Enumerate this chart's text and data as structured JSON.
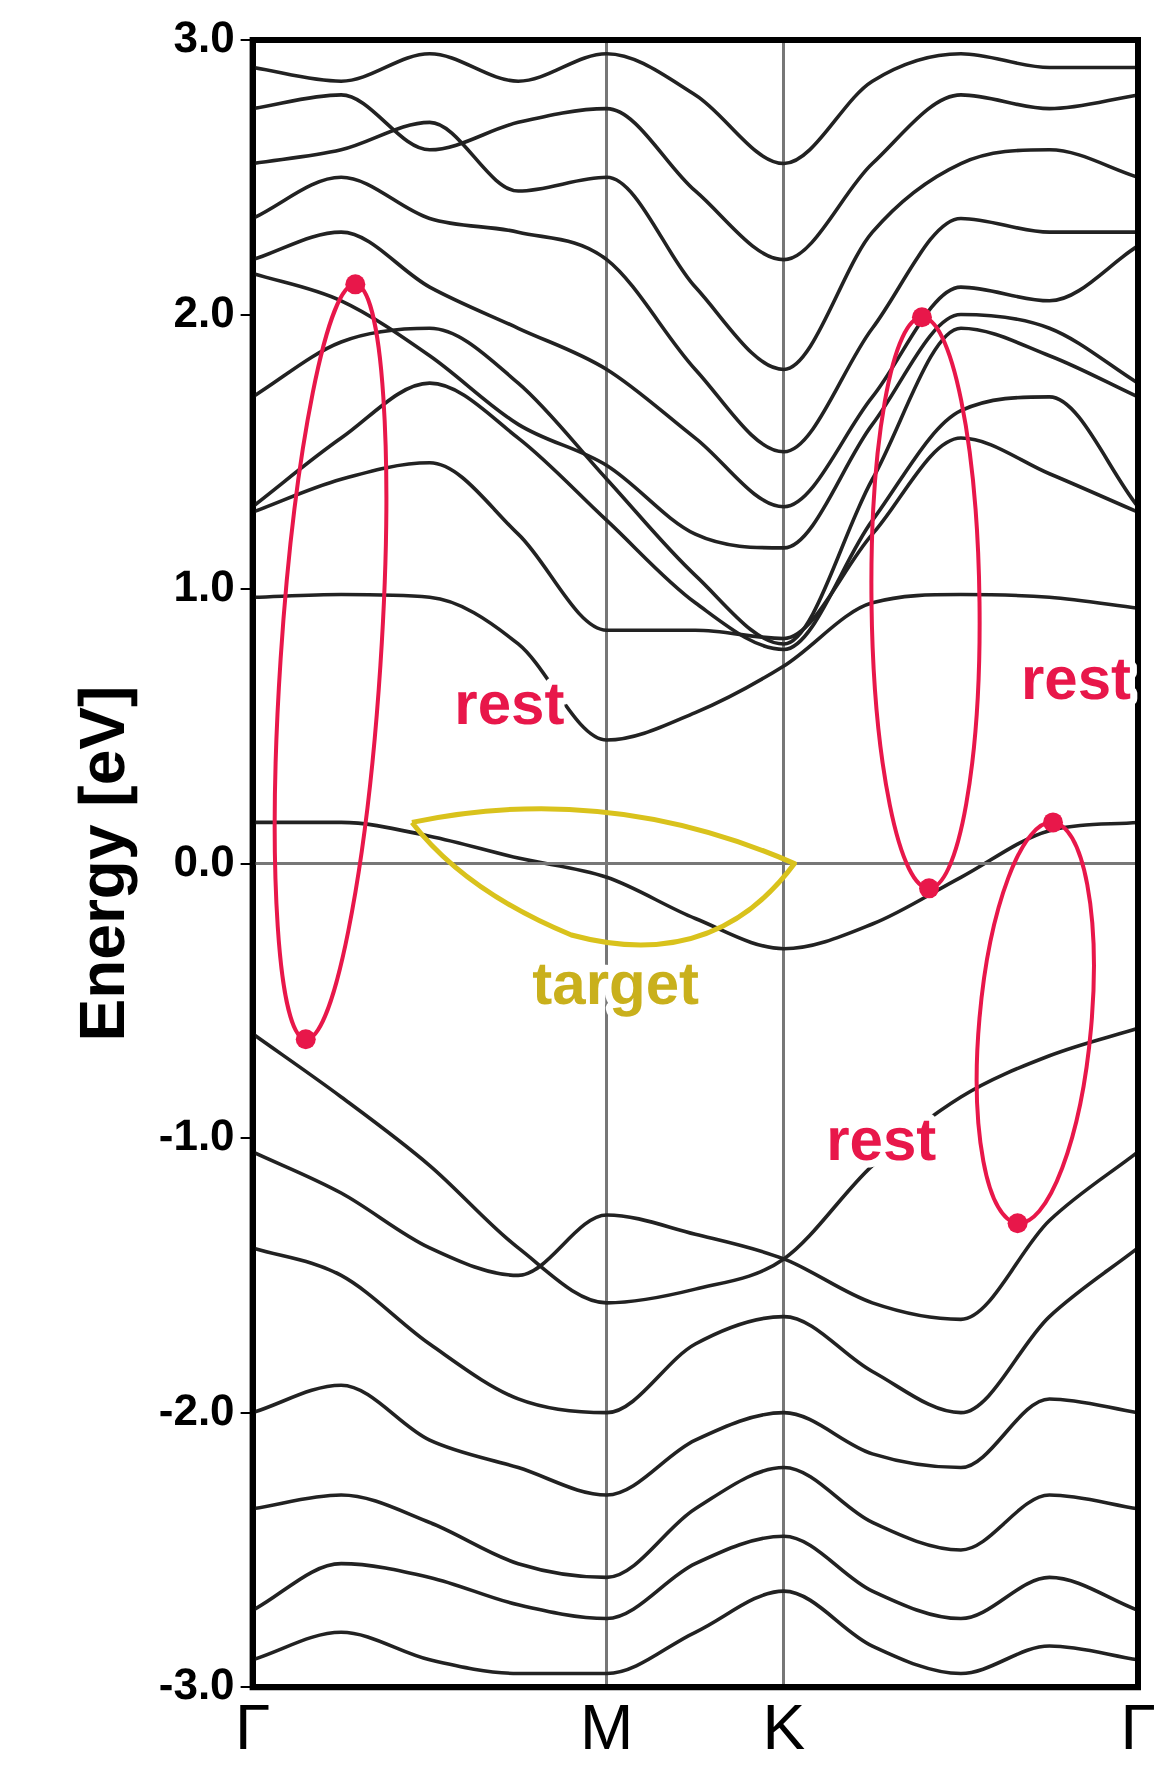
{
  "chart_data": {
    "type": "line",
    "ylabel": "Energy [eV]",
    "categories": [
      "Γ",
      null,
      null,
      null,
      "M",
      null,
      "K",
      null,
      null,
      null,
      "Γ"
    ],
    "ylim": [
      -3,
      3
    ],
    "yticks": [
      {
        "value": -3,
        "label": "-3.0"
      },
      {
        "value": -2,
        "label": "-2.0"
      },
      {
        "value": -1,
        "label": "-1.0"
      },
      {
        "value": 0,
        "label": "0.0"
      },
      {
        "value": 1,
        "label": "1.0"
      },
      {
        "value": 2,
        "label": "2.0"
      },
      {
        "value": 3,
        "label": "3.0"
      }
    ],
    "grid": "x",
    "legend": false,
    "marker": "none",
    "line_style": "solid",
    "ref_lines": [
      {
        "axis": "y",
        "value": 0,
        "label": null,
        "color": "#777777"
      }
    ],
    "annotations": [
      "rest",
      "rest",
      "rest",
      "target"
    ],
    "series": [
      {
        "color": "#222222",
        "values": [
          0.97,
          0.98,
          0.97,
          0.8,
          0.45,
          0.55,
          0.72,
          0.95,
          0.98,
          0.97,
          0.93
        ]
      },
      {
        "color": "#222222",
        "values": [
          1.28,
          1.4,
          1.46,
          1.2,
          0.85,
          0.85,
          0.82,
          1.2,
          1.55,
          1.42,
          1.28
        ]
      },
      {
        "color": "#222222",
        "values": [
          1.3,
          1.55,
          1.75,
          1.55,
          1.25,
          0.95,
          0.78,
          1.25,
          1.65,
          1.7,
          1.3
        ]
      },
      {
        "color": "#222222",
        "values": [
          1.7,
          1.9,
          1.95,
          1.75,
          1.4,
          1.05,
          0.8,
          1.4,
          1.95,
          1.85,
          1.7
        ]
      },
      {
        "color": "#222222",
        "values": [
          2.15,
          2.05,
          1.85,
          1.6,
          1.45,
          1.2,
          1.15,
          1.6,
          2.0,
          1.95,
          1.75
        ]
      },
      {
        "color": "#222222",
        "values": [
          2.2,
          2.3,
          2.1,
          1.95,
          1.8,
          1.55,
          1.3,
          1.7,
          2.1,
          2.05,
          2.25
        ]
      },
      {
        "color": "#222222",
        "values": [
          2.35,
          2.5,
          2.35,
          2.3,
          2.2,
          1.8,
          1.5,
          1.95,
          2.35,
          2.3,
          2.3
        ]
      },
      {
        "color": "#222222",
        "values": [
          2.55,
          2.6,
          2.7,
          2.45,
          2.5,
          2.1,
          1.8,
          2.3,
          2.55,
          2.6,
          2.5
        ]
      },
      {
        "color": "#222222",
        "values": [
          2.75,
          2.8,
          2.6,
          2.7,
          2.75,
          2.45,
          2.2,
          2.55,
          2.8,
          2.75,
          2.8
        ]
      },
      {
        "color": "#222222",
        "values": [
          2.9,
          2.85,
          2.95,
          2.85,
          2.95,
          2.8,
          2.55,
          2.85,
          2.95,
          2.9,
          2.9
        ]
      },
      {
        "color": "#222222",
        "values": [
          0.15,
          0.15,
          0.1,
          0.02,
          -0.05,
          -0.2,
          -0.31,
          -0.22,
          -0.05,
          0.12,
          0.15
        ]
      },
      {
        "color": "#222222",
        "values": [
          -0.62,
          -0.85,
          -1.1,
          -1.4,
          -1.6,
          -1.55,
          -1.44,
          -1.1,
          -0.85,
          -0.7,
          -0.6
        ]
      },
      {
        "color": "#222222",
        "values": [
          -1.05,
          -1.2,
          -1.4,
          -1.5,
          -1.28,
          -1.35,
          -1.44,
          -1.6,
          -1.66,
          -1.3,
          -1.05
        ]
      },
      {
        "color": "#222222",
        "values": [
          -1.4,
          -1.5,
          -1.75,
          -1.95,
          -2.0,
          -1.75,
          -1.65,
          -1.85,
          -2.0,
          -1.65,
          -1.4
        ]
      },
      {
        "color": "#222222",
        "values": [
          -2.0,
          -1.9,
          -2.1,
          -2.2,
          -2.3,
          -2.1,
          -2.0,
          -2.15,
          -2.2,
          -1.95,
          -2.0
        ]
      },
      {
        "color": "#222222",
        "values": [
          -2.35,
          -2.3,
          -2.4,
          -2.55,
          -2.6,
          -2.35,
          -2.2,
          -2.4,
          -2.5,
          -2.3,
          -2.35
        ]
      },
      {
        "color": "#222222",
        "values": [
          -2.72,
          -2.55,
          -2.6,
          -2.7,
          -2.75,
          -2.55,
          -2.45,
          -2.65,
          -2.75,
          -2.6,
          -2.72
        ]
      },
      {
        "color": "#222222",
        "values": [
          -2.9,
          -2.8,
          -2.9,
          -2.95,
          -2.95,
          -2.8,
          -2.65,
          -2.85,
          -2.95,
          -2.85,
          -2.9
        ]
      }
    ]
  }
}
